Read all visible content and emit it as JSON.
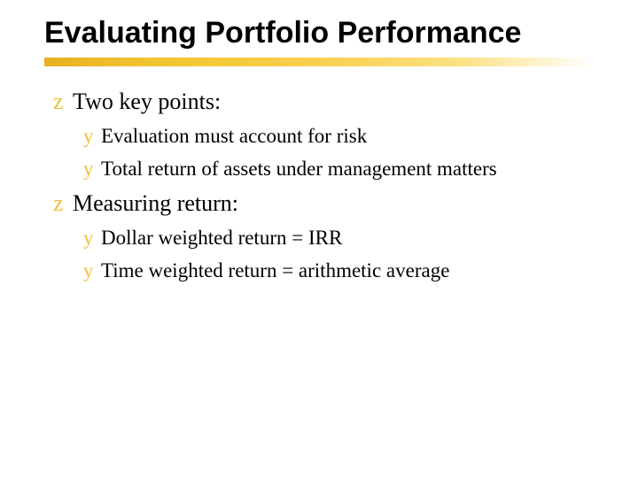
{
  "slide": {
    "title": "Evaluating Portfolio Performance",
    "title_color": "#000000",
    "title_fontsize": 34,
    "title_fontweight": 900,
    "underline_gradient_start": "#e8b020",
    "underline_gradient_end": "#ffffff",
    "underline_height": 10,
    "background_color": "#ffffff",
    "bullets": [
      {
        "level": 1,
        "marker": "z",
        "text": "Two key points:",
        "marker_color": "#f0c040",
        "text_color": "#000000",
        "fontsize": 26
      },
      {
        "level": 2,
        "marker": "y",
        "text": "Evaluation must account for risk",
        "marker_color": "#f0c040",
        "text_color": "#000000",
        "fontsize": 23
      },
      {
        "level": 2,
        "marker": "y",
        "text": "Total return of assets under management matters",
        "marker_color": "#f0c040",
        "text_color": "#000000",
        "fontsize": 23
      },
      {
        "level": 1,
        "marker": "z",
        "text": "Measuring return:",
        "marker_color": "#f0c040",
        "text_color": "#000000",
        "fontsize": 26
      },
      {
        "level": 2,
        "marker": "y",
        "text": "Dollar weighted return = IRR",
        "marker_color": "#f0c040",
        "text_color": "#000000",
        "fontsize": 23
      },
      {
        "level": 2,
        "marker": "y",
        "text": "Time weighted return = arithmetic average",
        "marker_color": "#f0c040",
        "text_color": "#000000",
        "fontsize": 23
      }
    ],
    "body_font": "Georgia, Times New Roman, serif",
    "title_font": "Verdana, Arial, sans-serif"
  }
}
